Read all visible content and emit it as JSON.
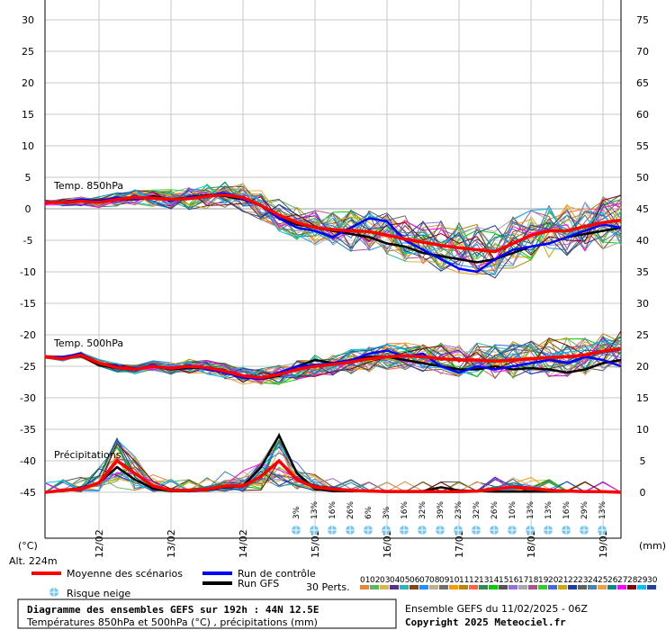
{
  "chart_data": {
    "type": "line",
    "title": "Diagramme des ensembles GEFS sur 192h : 44N 12.5E",
    "subtitle": "Températures 850hPa et 500hPa (°C) , précipitations (mm)",
    "run_info": "Ensemble GEFS du 11/02/2025 - 06Z",
    "copyright": "Copyright 2025 Meteociel.fr",
    "altitude": "Alt. 224m",
    "left_unit": "(°C)",
    "right_unit": "(mm)",
    "left_axis": {
      "min": -45,
      "max": 30,
      "ticks": [
        30,
        25,
        20,
        15,
        10,
        5,
        0,
        -5,
        -10,
        -15,
        -20,
        -25,
        -30,
        -35,
        -40,
        -45
      ]
    },
    "right_axis": {
      "ticks": [
        75,
        70,
        65,
        60,
        55,
        50,
        45,
        40,
        35,
        30,
        25,
        20,
        15,
        10,
        5,
        0
      ]
    },
    "x_axis": {
      "hours_total": 192,
      "dates": [
        {
          "label": "12/02",
          "hour": 18
        },
        {
          "label": "13/02",
          "hour": 42
        },
        {
          "label": "14/02",
          "hour": 66
        },
        {
          "label": "15/02",
          "hour": 90
        },
        {
          "label": "16/02",
          "hour": 114
        },
        {
          "label": "17/02",
          "hour": 138
        },
        {
          "label": "18/02",
          "hour": 162
        },
        {
          "label": "19/02",
          "hour": 186
        }
      ]
    },
    "annotations": {
      "t850": "Temp. 850hPa",
      "t500": "Temp. 500hPa",
      "precip": "Précipitations"
    },
    "snow_risk": [
      {
        "hour": 84,
        "pct": "3%"
      },
      {
        "hour": 90,
        "pct": "13%"
      },
      {
        "hour": 96,
        "pct": "16%"
      },
      {
        "hour": 102,
        "pct": "26%"
      },
      {
        "hour": 108,
        "pct": "6%"
      },
      {
        "hour": 114,
        "pct": "3%"
      },
      {
        "hour": 120,
        "pct": "16%"
      },
      {
        "hour": 126,
        "pct": "32%"
      },
      {
        "hour": 132,
        "pct": "39%"
      },
      {
        "hour": 138,
        "pct": "23%"
      },
      {
        "hour": 144,
        "pct": "32%"
      },
      {
        "hour": 150,
        "pct": "26%"
      },
      {
        "hour": 156,
        "pct": "10%"
      },
      {
        "hour": 162,
        "pct": "13%"
      },
      {
        "hour": 168,
        "pct": "13%"
      },
      {
        "hour": 174,
        "pct": "16%"
      },
      {
        "hour": 180,
        "pct": "29%"
      },
      {
        "hour": 186,
        "pct": "13%"
      }
    ],
    "t850_hours": [
      0,
      6,
      12,
      18,
      24,
      30,
      36,
      42,
      48,
      54,
      60,
      66,
      72,
      78,
      84,
      90,
      96,
      102,
      108,
      114,
      120,
      126,
      132,
      138,
      144,
      150,
      156,
      162,
      168,
      174,
      180,
      186,
      192
    ],
    "series": [
      {
        "name": "Moyenne des scénarios",
        "kind": "mean",
        "color": "#ff0000",
        "t850": [
          1,
          1,
          1.2,
          1,
          1.5,
          1.8,
          1.7,
          1.5,
          1.6,
          2,
          2.2,
          1.8,
          0.5,
          -1,
          -2.2,
          -3,
          -3.3,
          -3.5,
          -3.6,
          -4.2,
          -4.8,
          -5.3,
          -5.8,
          -6.2,
          -6.5,
          -6.8,
          -5.5,
          -4.2,
          -3.5,
          -3.5,
          -2.8,
          -2.2,
          -1.8
        ],
        "t500": [
          -23.5,
          -23.8,
          -23.2,
          -24.5,
          -25.2,
          -25.5,
          -25,
          -25.3,
          -25,
          -25.2,
          -25.8,
          -26.5,
          -26.8,
          -26.3,
          -25.5,
          -25,
          -24.7,
          -24.3,
          -23.8,
          -23.5,
          -23.3,
          -23.5,
          -23.8,
          -24,
          -24,
          -24.2,
          -24,
          -23.8,
          -23.6,
          -23.5,
          -23.2,
          -22.6,
          -22.2
        ],
        "precip": [
          0,
          0.3,
          0.5,
          1.5,
          5,
          3,
          1,
          0.3,
          0.3,
          0.5,
          1,
          1,
          2.5,
          5,
          2,
          0.8,
          0.5,
          0.3,
          0.2,
          0.1,
          0.1,
          0.1,
          0.1,
          0.1,
          0.2,
          0.5,
          0.8,
          0.6,
          0.3,
          0.2,
          0.1,
          0.1,
          0
        ]
      },
      {
        "name": "Run de contrôle",
        "kind": "control",
        "color": "#0000ff",
        "t850": [
          1,
          1,
          1.5,
          1.2,
          1.8,
          1.5,
          1.8,
          1.3,
          1.8,
          2,
          2.5,
          1.5,
          0.5,
          -1.5,
          -3,
          -3.5,
          -4.5,
          -3,
          -1.5,
          -2,
          -5,
          -6.5,
          -8,
          -9.5,
          -10,
          -8,
          -6.5,
          -6,
          -5.5,
          -4.5,
          -3.5,
          -2.5,
          -3
        ],
        "t500": [
          -23.5,
          -23.5,
          -23,
          -24.5,
          -25,
          -25.5,
          -24.8,
          -25.5,
          -24.8,
          -25.5,
          -26,
          -26.8,
          -27,
          -26,
          -25,
          -24.8,
          -24.5,
          -24,
          -23,
          -22.5,
          -23.5,
          -23,
          -25,
          -26,
          -25,
          -25.5,
          -25,
          -24.5,
          -24,
          -24.5,
          -23.5,
          -24,
          -25
        ]
      },
      {
        "name": "Run GFS",
        "kind": "gfs",
        "color": "#000000",
        "t850": [
          1,
          1,
          1.2,
          1,
          1.5,
          1.5,
          2,
          1.5,
          1.8,
          2.2,
          2,
          1.5,
          0.5,
          -1.5,
          -2.5,
          -3,
          -3.5,
          -4,
          -4.5,
          -5.5,
          -6,
          -7,
          -7.5,
          -8,
          -8.5,
          -8,
          -7,
          -6,
          -5.5,
          -4.5,
          -4,
          -3.5,
          -3
        ],
        "t500": [
          -23.5,
          -23.6,
          -23.3,
          -24.8,
          -25.3,
          -25.5,
          -25,
          -25.5,
          -25.2,
          -25.3,
          -26,
          -26.7,
          -27,
          -26.5,
          -25,
          -24,
          -24.5,
          -24,
          -23.5,
          -23.5,
          -24,
          -24.5,
          -25,
          -25.5,
          -25.5,
          -25,
          -25.5,
          -25.3,
          -25.5,
          -26,
          -25.5,
          -24.5,
          -24
        ],
        "precip": [
          0,
          0.3,
          0.5,
          1.5,
          4,
          2,
          0.6,
          0.2,
          0.2,
          0.4,
          0.8,
          1,
          4,
          9,
          3,
          0.5,
          0.2,
          0.2,
          0.2,
          0.2,
          0.2,
          0.2,
          0.8,
          0.3,
          0.2,
          0.1,
          0.1,
          0.1,
          0.1,
          0.1,
          0.1,
          0.1,
          0
        ]
      }
    ],
    "perturbations": {
      "count_label": "30 Perts.",
      "labels": [
        "01",
        "02",
        "03",
        "04",
        "05",
        "06",
        "07",
        "08",
        "09",
        "10",
        "11",
        "12",
        "13",
        "14",
        "15",
        "16",
        "17",
        "18",
        "19",
        "20",
        "21",
        "22",
        "23",
        "24",
        "25",
        "26",
        "27",
        "28",
        "29",
        "30"
      ],
      "colors": [
        "#e6883c",
        "#5cb85c",
        "#d8b84a",
        "#5b2d8c",
        "#2bb5b5",
        "#8b4513",
        "#1e90ff",
        "#c0b090",
        "#707070",
        "#ff9900",
        "#b8860b",
        "#ff6347",
        "#2e8b57",
        "#00cc00",
        "#555555",
        "#9370db",
        "#a9a9a9",
        "#b05090",
        "#32cd32",
        "#4169e1",
        "#ccaa00",
        "#1e3ca0",
        "#606060",
        "#4682b4",
        "#f0a040",
        "#008b8b",
        "#ff00ff",
        "#800000",
        "#00bfff",
        "#2040a0"
      ]
    },
    "legend": {
      "mean": "Moyenne des scénarios",
      "control": "Run de contrôle",
      "gfs": "Run GFS",
      "snow": "Risque neige"
    }
  }
}
